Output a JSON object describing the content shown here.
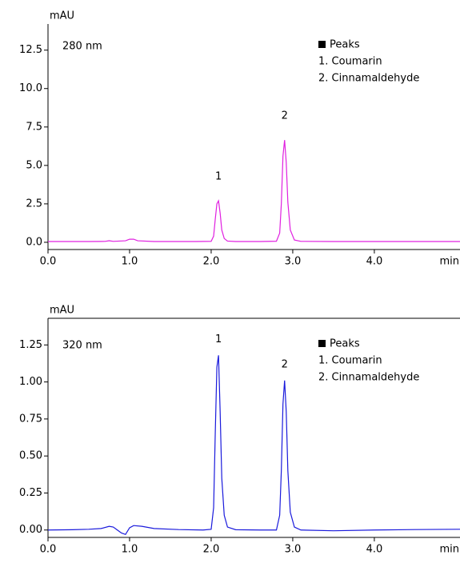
{
  "chart_data": [
    {
      "type": "line",
      "y_label": "mAU",
      "x_label": "min",
      "annotation": "280 nm",
      "legend_title": "Peaks",
      "legend_items": [
        "1. Coumarin",
        "2. Cinnamaldehyde"
      ],
      "peak_labels": [
        "1",
        "2"
      ],
      "x": [
        0,
        0.5,
        0.7,
        0.75,
        0.8,
        0.95,
        1.0,
        1.05,
        1.1,
        1.3,
        1.8,
        2.0,
        2.03,
        2.05,
        2.07,
        2.09,
        2.11,
        2.13,
        2.16,
        2.2,
        2.3,
        2.6,
        2.8,
        2.84,
        2.86,
        2.88,
        2.9,
        2.92,
        2.94,
        2.97,
        3.02,
        3.1,
        3.5,
        4.0,
        4.5,
        5.05
      ],
      "series": [
        {
          "color": "#e020e0",
          "values": [
            0.05,
            0.05,
            0.06,
            0.1,
            0.06,
            0.1,
            0.2,
            0.2,
            0.1,
            0.05,
            0.05,
            0.06,
            0.4,
            1.5,
            2.5,
            2.7,
            1.9,
            0.8,
            0.25,
            0.08,
            0.05,
            0.05,
            0.07,
            0.6,
            2.5,
            5.6,
            6.65,
            5.2,
            2.6,
            0.8,
            0.15,
            0.06,
            0.05,
            0.05,
            0.05,
            0.05
          ]
        }
      ],
      "xlim": [
        0,
        5.05
      ],
      "ylim": [
        -0.47,
        14.2
      ],
      "xticks": [
        {
          "value": 0,
          "label": "0.0"
        },
        {
          "value": 1,
          "label": "1.0"
        },
        {
          "value": 2,
          "label": "2.0"
        },
        {
          "value": 3,
          "label": "3.0"
        },
        {
          "value": 4,
          "label": "4.0"
        }
      ],
      "yticks": [
        {
          "value": 0,
          "label": "0.0"
        },
        2.5,
        {
          "value": 5,
          "label": "5.0"
        },
        7.5,
        {
          "value": 10,
          "label": "10.0"
        },
        12.5
      ]
    },
    {
      "type": "line",
      "y_label": "mAU",
      "x_label": "min",
      "annotation": "320 nm",
      "legend_title": "Peaks",
      "legend_items": [
        "1. Coumarin",
        "2. Cinnamaldehyde"
      ],
      "peak_labels": [
        "1",
        "2"
      ],
      "x": [
        0,
        0.3,
        0.5,
        0.65,
        0.75,
        0.8,
        0.85,
        0.9,
        0.95,
        1.0,
        1.05,
        1.15,
        1.3,
        1.6,
        1.9,
        2.0,
        2.03,
        2.05,
        2.07,
        2.09,
        2.11,
        2.13,
        2.16,
        2.2,
        2.3,
        2.6,
        2.8,
        2.84,
        2.86,
        2.88,
        2.9,
        2.92,
        2.94,
        2.97,
        3.02,
        3.1,
        3.5,
        4.0,
        4.5,
        5.05
      ],
      "series": [
        {
          "color": "#1a1adc",
          "values": [
            0,
            0.002,
            0.005,
            0.01,
            0.025,
            0.02,
            0.0,
            -0.02,
            -0.03,
            0.015,
            0.03,
            0.025,
            0.01,
            0.003,
            0.0,
            0.005,
            0.15,
            0.65,
            1.1,
            1.18,
            0.8,
            0.35,
            0.1,
            0.02,
            0.002,
            0.0,
            0.0,
            0.1,
            0.4,
            0.85,
            1.01,
            0.8,
            0.4,
            0.12,
            0.02,
            0.0,
            -0.005,
            0.0,
            0.003,
            0.005
          ]
        }
      ],
      "xlim": [
        0,
        5.05
      ],
      "ylim": [
        -0.05,
        1.43
      ],
      "xticks": [
        {
          "value": 0,
          "label": "0.0"
        },
        {
          "value": 1,
          "label": "1.0"
        },
        {
          "value": 2,
          "label": "2.0"
        },
        {
          "value": 3,
          "label": "3.0"
        },
        {
          "value": 4,
          "label": "4.0"
        }
      ],
      "yticks": [
        {
          "value": 0,
          "label": "0.00"
        },
        0.25,
        {
          "value": 0.5,
          "label": "0.50"
        },
        0.75,
        {
          "value": 1,
          "label": "1.00"
        },
        1.25
      ]
    }
  ]
}
